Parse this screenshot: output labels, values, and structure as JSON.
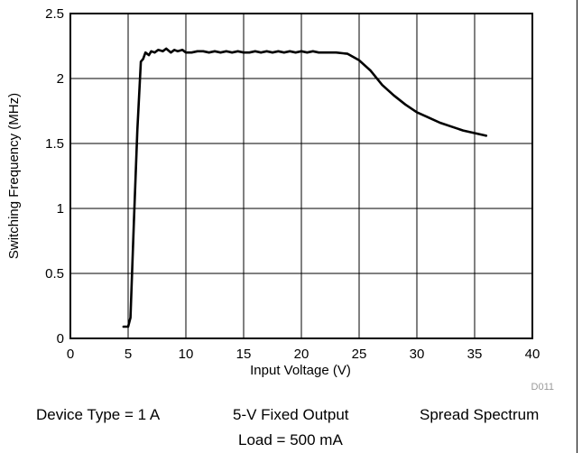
{
  "chart_data": {
    "type": "line",
    "title": "",
    "xlabel": "Input Voltage (V)",
    "ylabel": "Switching Frequency (MHz)",
    "xlim": [
      0,
      40
    ],
    "ylim": [
      0,
      2.5
    ],
    "xticks": [
      "0",
      "5",
      "10",
      "15",
      "20",
      "25",
      "30",
      "35",
      "40"
    ],
    "yticks": [
      "0",
      "0.5",
      "1",
      "1.5",
      "2",
      "2.5"
    ],
    "grid": true,
    "legend": "none",
    "figure_id": "D011",
    "series": [
      {
        "color": "#000000",
        "x": [
          4.6,
          5.0,
          5.2,
          5.5,
          5.8,
          6.1,
          6.3,
          6.5,
          6.8,
          7.0,
          7.3,
          7.6,
          8.0,
          8.3,
          8.7,
          9.0,
          9.3,
          9.7,
          10.0,
          10.5,
          11,
          11.5,
          12,
          12.5,
          13,
          13.5,
          14,
          14.5,
          15,
          15.5,
          16,
          16.5,
          17,
          17.5,
          18,
          18.5,
          19,
          19.5,
          20,
          20.5,
          21,
          21.5,
          22,
          23,
          24,
          25,
          26,
          27,
          28,
          29,
          30,
          31,
          32,
          33,
          34,
          35,
          36
        ],
        "y": [
          0.09,
          0.09,
          0.16,
          0.9,
          1.6,
          2.13,
          2.15,
          2.2,
          2.18,
          2.21,
          2.2,
          2.22,
          2.21,
          2.23,
          2.2,
          2.22,
          2.21,
          2.22,
          2.2,
          2.2,
          2.21,
          2.21,
          2.2,
          2.21,
          2.2,
          2.21,
          2.2,
          2.21,
          2.2,
          2.2,
          2.21,
          2.2,
          2.21,
          2.2,
          2.21,
          2.2,
          2.21,
          2.2,
          2.21,
          2.2,
          2.21,
          2.2,
          2.2,
          2.2,
          2.19,
          2.14,
          2.06,
          1.95,
          1.87,
          1.8,
          1.74,
          1.7,
          1.66,
          1.63,
          1.6,
          1.58,
          1.56
        ]
      }
    ]
  },
  "captions": {
    "device_type": "Device Type = 1 A",
    "output": "5-V Fixed Output",
    "spectrum": "Spread Spectrum",
    "load": "Load = 500 mA"
  }
}
